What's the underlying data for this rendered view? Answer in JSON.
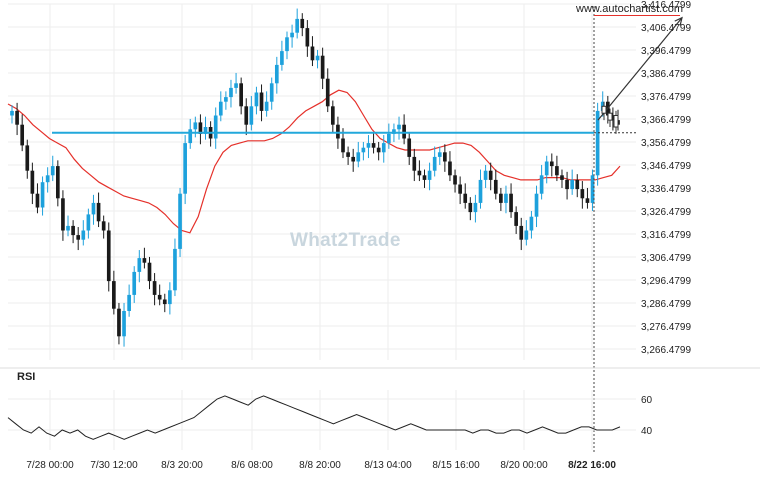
{
  "site": "www.autochartist.com",
  "watermark": "What2Trade",
  "rsi_label": "RSI",
  "colors": {
    "candle": "#1da1dc",
    "candle_down": "#1a1a1a",
    "moving_average": "#e5302a",
    "support_line": "#22a8db",
    "forecast_line": "#e5302a",
    "arrow": "#333333",
    "rsi_line": "#222222",
    "grid": "#ededed"
  },
  "chart_data": {
    "type": "candlestick",
    "y_axis_ticks": [
      "3,416.4799",
      "3,406.4799",
      "3,396.4799",
      "3,386.4799",
      "3,376.4799",
      "3,366.4799",
      "3,356.4799",
      "3,346.4799",
      "3,336.4799",
      "3,326.4799",
      "3,316.4799",
      "3,306.4799",
      "3,296.4799",
      "3,286.4799",
      "3,276.4799",
      "3,266.4799"
    ],
    "x_axis_ticks": [
      "7/28 00:00",
      "7/30 12:00",
      "8/3 20:00",
      "8/6 08:00",
      "8/8 20:00",
      "8/13 04:00",
      "8/15 16:00",
      "8/20 00:00",
      "8/22 16:00"
    ],
    "rsi_ticks": [
      "60",
      "40"
    ],
    "ylim": [
      3262,
      3418
    ],
    "support_level": 3360.5,
    "forecast_level": 3411.5,
    "candles_close": [
      3370,
      3364,
      3355,
      3344,
      3334,
      3328,
      3339,
      3342,
      3346,
      3332,
      3318,
      3320,
      3316,
      3314,
      3318,
      3325,
      3330,
      3322,
      3318,
      3296,
      3284,
      3272,
      3283,
      3290,
      3300,
      3306,
      3304,
      3296,
      3290,
      3288,
      3286,
      3292,
      3310,
      3334,
      3356,
      3362,
      3365,
      3360,
      3363,
      3358,
      3368,
      3374,
      3376,
      3380,
      3382,
      3372,
      3364,
      3372,
      3378,
      3370,
      3374,
      3382,
      3390,
      3396,
      3402,
      3404,
      3410,
      3406,
      3398,
      3392,
      3394,
      3384,
      3372,
      3364,
      3358,
      3352,
      3350,
      3348,
      3352,
      3354,
      3356,
      3354,
      3352,
      3356,
      3360,
      3362,
      3364,
      3358,
      3350,
      3344,
      3342,
      3340,
      3344,
      3350,
      3352,
      3348,
      3342,
      3338,
      3334,
      3330,
      3326,
      3330,
      3340,
      3344,
      3340,
      3334,
      3330,
      3334,
      3326,
      3320,
      3314,
      3318,
      3324,
      3334,
      3342,
      3348,
      3346,
      3342,
      3340,
      3336,
      3340,
      3336,
      3332,
      3330,
      3342,
      3370,
      3374,
      3368,
      3366,
      3364
    ],
    "moving_average": [
      3373,
      3371,
      3368,
      3364,
      3361,
      3358,
      3356,
      3354,
      3349,
      3345,
      3342,
      3339,
      3337,
      3335,
      3333,
      3332,
      3331,
      3330,
      3328,
      3325,
      3321,
      3318,
      3317,
      3324,
      3336,
      3346,
      3352,
      3355,
      3356,
      3357,
      3357,
      3357,
      3358,
      3360,
      3363,
      3367,
      3370,
      3372,
      3374,
      3377,
      3379,
      3378,
      3374,
      3368,
      3362,
      3358,
      3356,
      3354,
      3353,
      3353,
      3353,
      3353,
      3354,
      3355,
      3356,
      3356,
      3355,
      3352,
      3348,
      3344,
      3342,
      3341,
      3340,
      3340,
      3340,
      3341,
      3341,
      3341,
      3340,
      3340,
      3340,
      3340,
      3341,
      3342,
      3346
    ],
    "rsi_values": [
      48,
      44,
      40,
      38,
      42,
      38,
      36,
      40,
      38,
      40,
      36,
      34,
      36,
      38,
      36,
      34,
      36,
      38,
      40,
      38,
      40,
      42,
      44,
      46,
      48,
      52,
      56,
      60,
      62,
      60,
      58,
      56,
      60,
      62,
      60,
      58,
      56,
      54,
      52,
      50,
      48,
      46,
      44,
      46,
      48,
      50,
      48,
      46,
      44,
      42,
      40,
      42,
      44,
      42,
      40,
      40,
      40,
      40,
      40,
      40,
      38,
      40,
      40,
      38,
      38,
      40,
      40,
      38,
      40,
      42,
      40,
      38,
      38,
      40,
      42,
      42,
      40,
      40,
      40,
      42
    ]
  }
}
